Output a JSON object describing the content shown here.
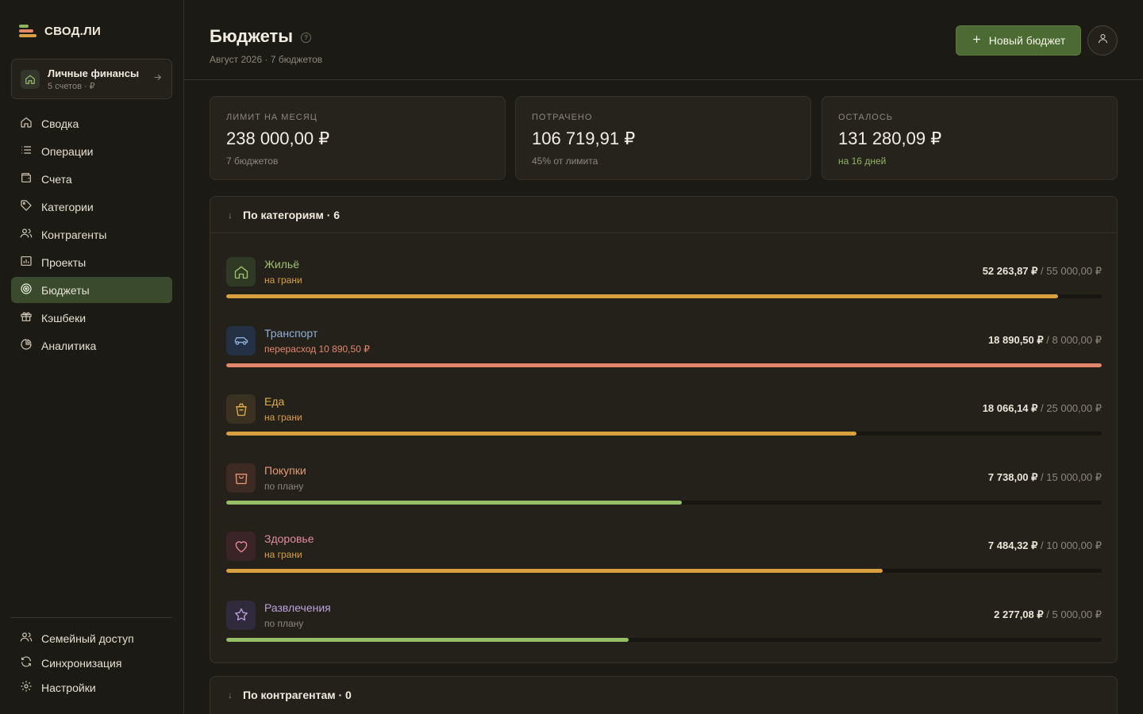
{
  "app": {
    "name": "СВОД.ЛИ"
  },
  "colors": {
    "accent": "#4c6b33",
    "active_nav": "#3a4a2c",
    "warn": "#d9a03f",
    "over": "#e3876a",
    "ok": "#97bf6a"
  },
  "workspace": {
    "title": "Личные финансы",
    "subtitle": "5 счетов · ₽"
  },
  "nav": {
    "items": [
      {
        "label": "Сводка",
        "icon": "home-icon"
      },
      {
        "label": "Операции",
        "icon": "list-icon"
      },
      {
        "label": "Счета",
        "icon": "wallet-icon"
      },
      {
        "label": "Категории",
        "icon": "tag-icon"
      },
      {
        "label": "Контрагенты",
        "icon": "users-icon"
      },
      {
        "label": "Проекты",
        "icon": "chart-folder-icon"
      },
      {
        "label": "Бюджеты",
        "icon": "target-icon",
        "active": true
      },
      {
        "label": "Кэшбеки",
        "icon": "gift-icon"
      },
      {
        "label": "Аналитика",
        "icon": "pie-chart-icon"
      }
    ],
    "bottom": [
      {
        "label": "Семейный доступ",
        "icon": "users-icon"
      },
      {
        "label": "Синхронизация",
        "icon": "refresh-icon"
      },
      {
        "label": "Настройки",
        "icon": "gear-icon"
      }
    ]
  },
  "header": {
    "title": "Бюджеты",
    "help": "?",
    "subtitle": "Август 2026 · 7 бюджетов",
    "new_button": "Новый бюджет"
  },
  "stats": [
    {
      "label": "ЛИМИТ НА МЕСЯЦ",
      "value": "238 000,00 ₽",
      "note": "7 бюджетов"
    },
    {
      "label": "ПОТРАЧЕНО",
      "value": "106 719,91 ₽",
      "note": "45% от лимита"
    },
    {
      "label": "ОСТАЛОСЬ",
      "value": "131 280,09 ₽",
      "note": "на 16 дней"
    }
  ],
  "categories_panel": {
    "title": "По категориям · 6",
    "rows": [
      {
        "name": "Жильё",
        "status": "на грани",
        "spent": "52 263,87 ₽",
        "limit": "/ 55 000,00 ₽",
        "progress": 0.95,
        "icon": "home-icon",
        "name_color": "#9fc46d",
        "status_color": "#d9a03f",
        "bar_color": "#d9a03f",
        "icon_bg": "#2f3a24"
      },
      {
        "name": "Транспорт",
        "status": "перерасход 10 890,50 ₽",
        "spent": "18 890,50 ₽",
        "limit": "/ 8 000,00 ₽",
        "progress": 1.0,
        "icon": "car-icon",
        "name_color": "#8fb0d8",
        "status_color": "#e3876a",
        "bar_color": "#e3876a",
        "icon_bg": "#243044"
      },
      {
        "name": "Еда",
        "status": "на грани",
        "spent": "18 066,14 ₽",
        "limit": "/ 25 000,00 ₽",
        "progress": 0.72,
        "icon": "cup-icon",
        "name_color": "#e0ad4f",
        "status_color": "#d9a03f",
        "bar_color": "#d9a03f",
        "icon_bg": "#3b3120"
      },
      {
        "name": "Покупки",
        "status": "по плану",
        "spent": "7 738,00 ₽",
        "limit": "/ 15 000,00 ₽",
        "progress": 0.52,
        "icon": "shopping-bag-icon",
        "name_color": "#e59a70",
        "status_color": "#8d877a",
        "bar_color": "#97bf6a",
        "icon_bg": "#3d2a22"
      },
      {
        "name": "Здоровье",
        "status": "на грани",
        "spent": "7 484,32 ₽",
        "limit": "/ 10 000,00 ₽",
        "progress": 0.75,
        "icon": "heart-icon",
        "name_color": "#e48a9a",
        "status_color": "#d9a03f",
        "bar_color": "#d9a03f",
        "icon_bg": "#3b2428"
      },
      {
        "name": "Развлечения",
        "status": "по плану",
        "spent": "2 277,08 ₽",
        "limit": "/ 5 000,00 ₽",
        "progress": 0.46,
        "icon": "star-icon",
        "name_color": "#b9a2db",
        "status_color": "#8d877a",
        "bar_color": "#97bf6a",
        "icon_bg": "#302a3d"
      }
    ]
  },
  "counterparties_panel": {
    "title": "По контрагентам · 0"
  }
}
